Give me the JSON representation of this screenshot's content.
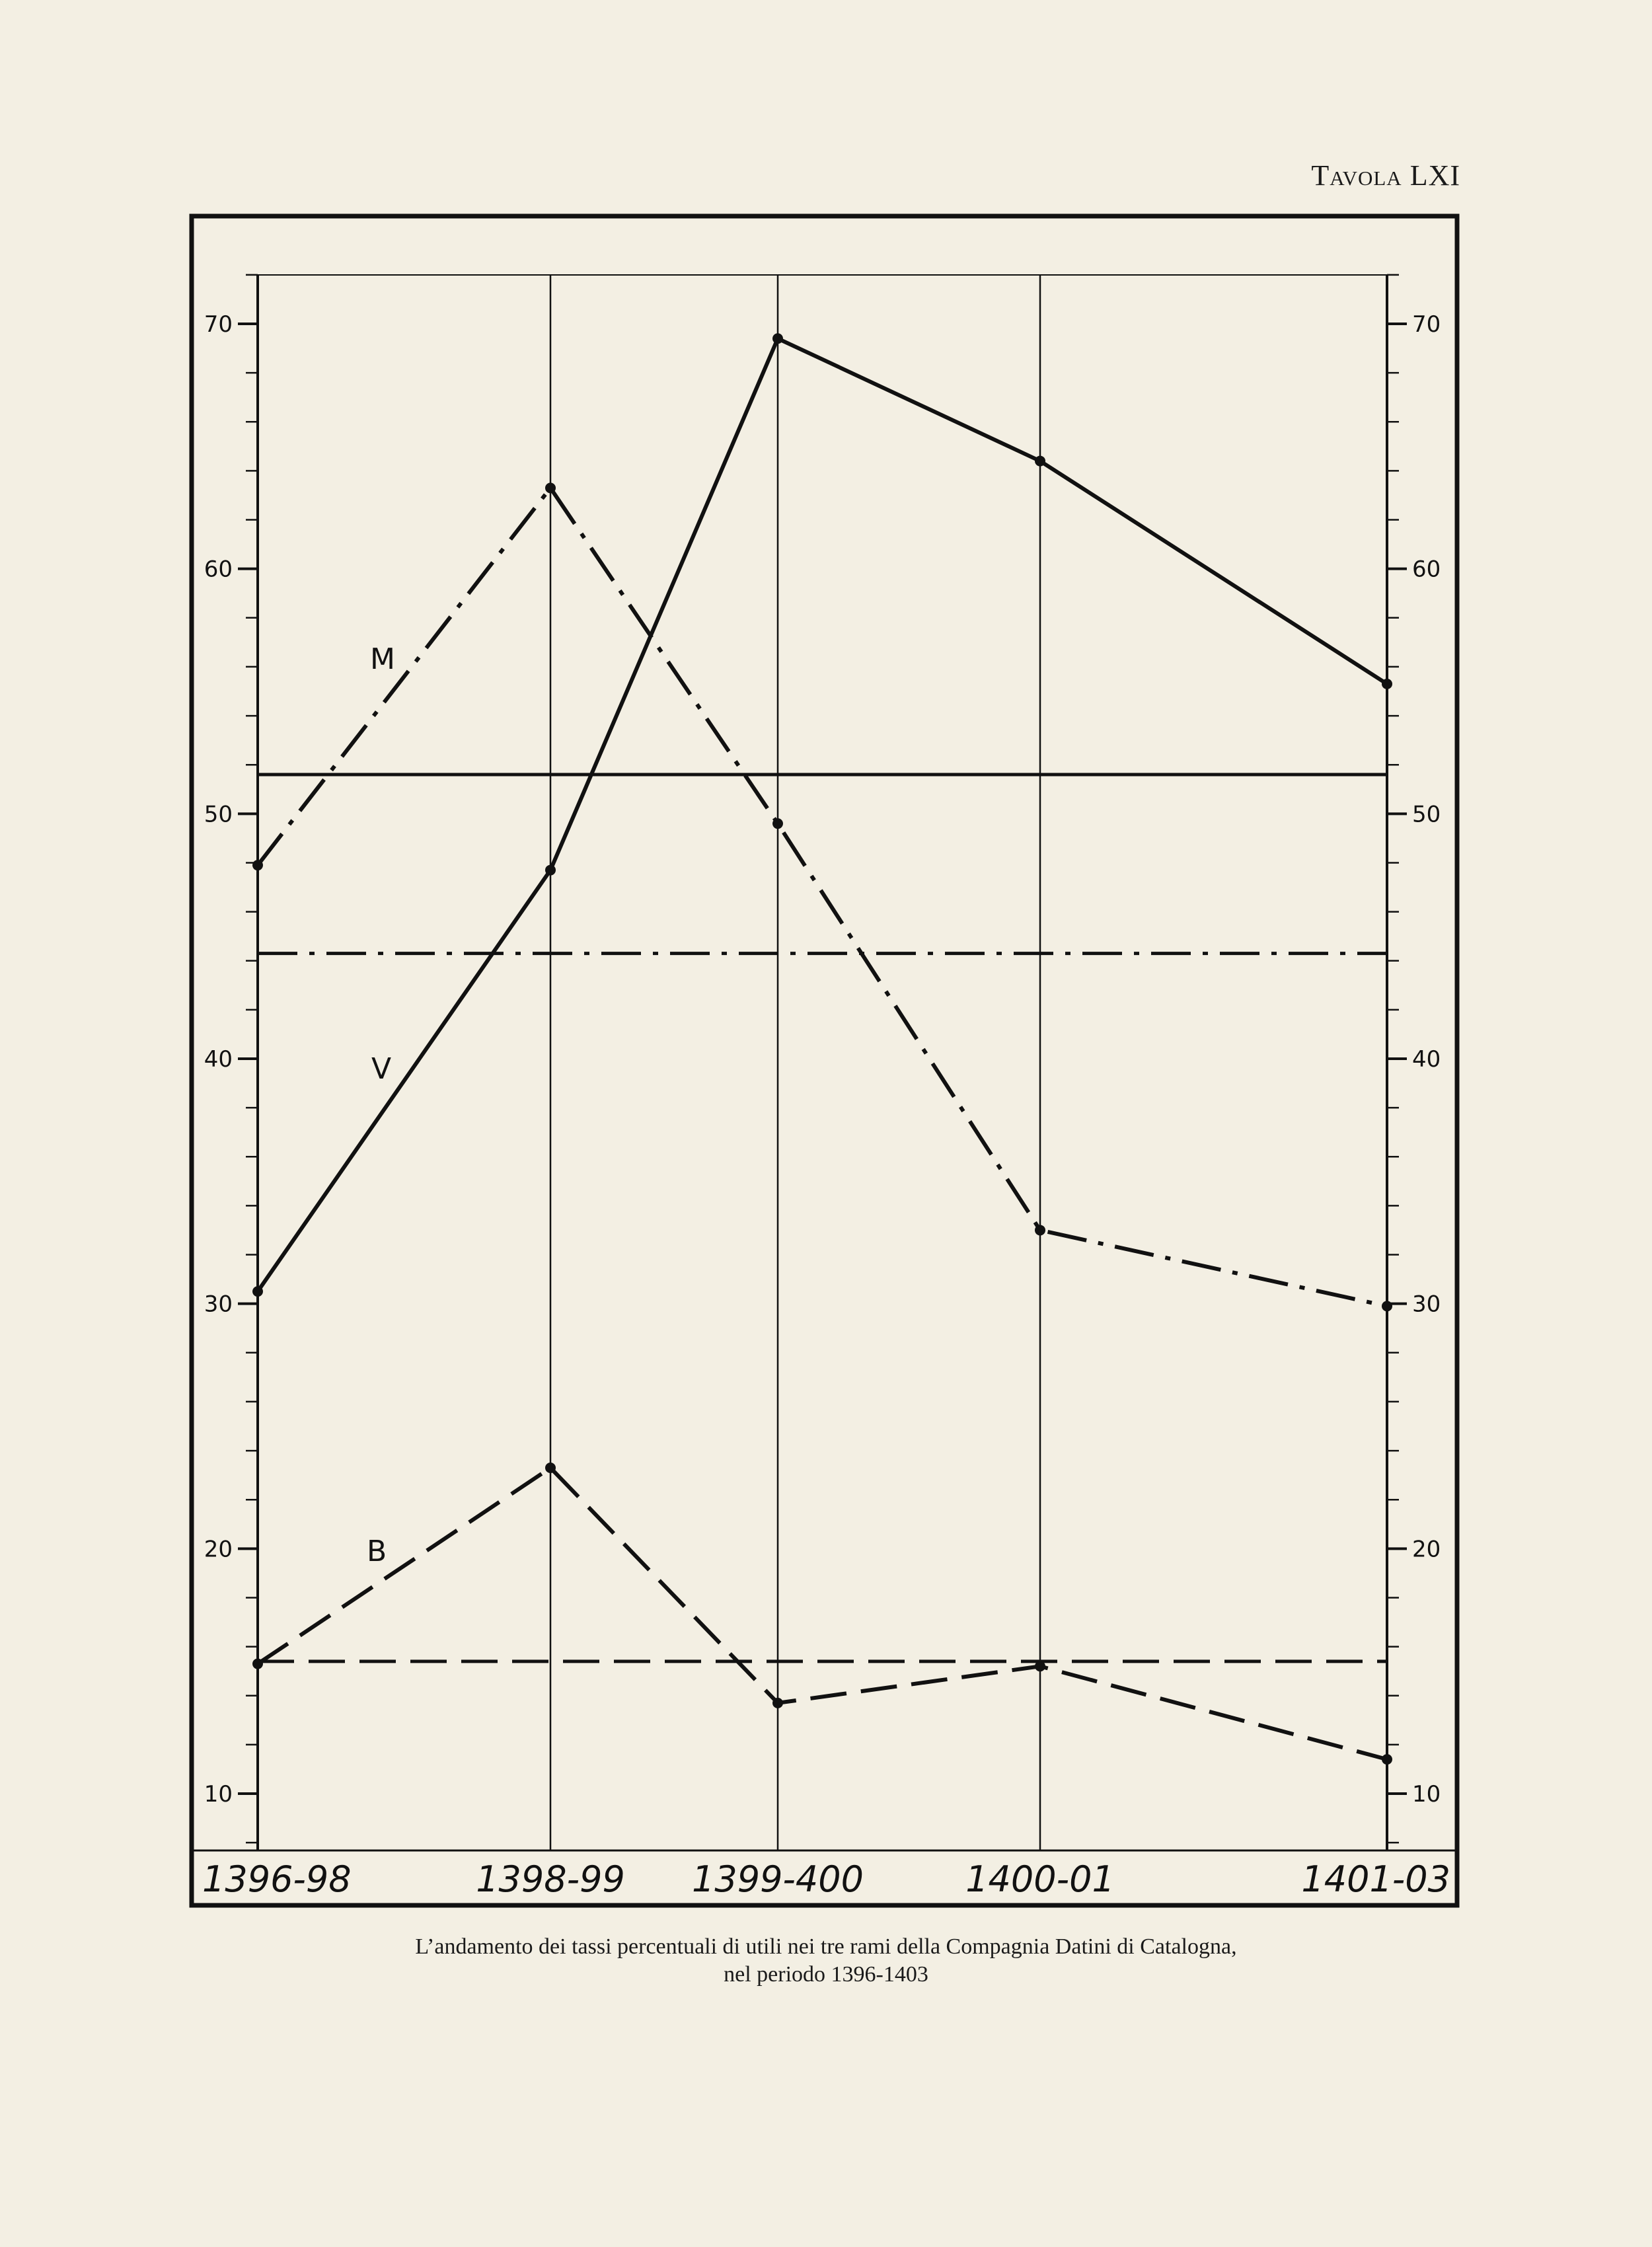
{
  "plate_title": "Tavola LXI",
  "caption": {
    "line1": "L’andamento dei tassi percentuali di utili nei tre rami della Compagnia Datini di Catalogna,",
    "line2": "nel periodo 1396-1403"
  },
  "chart_data": {
    "type": "line",
    "title": "L’andamento dei tassi percentuali di utili nei tre rami della Compagnia Datini di Catalogna, nel periodo 1396-1403",
    "xlabel": "",
    "ylabel": "",
    "categories": [
      "1396-98",
      "1398-99",
      "1399-400",
      "1400-01",
      "1401-03"
    ],
    "ylim": [
      8,
      72
    ],
    "yticks": [
      10,
      20,
      30,
      40,
      50,
      60,
      70
    ],
    "minor_tick_step": 2,
    "grid": "vertical lines at categories",
    "series": [
      {
        "name": "V",
        "style": "solid",
        "values": [
          30.5,
          47.7,
          69.4,
          64.4,
          55.3
        ],
        "average": 51.6
      },
      {
        "name": "M",
        "style": "dash-dot",
        "values": [
          47.9,
          63.3,
          49.6,
          33.0,
          29.9
        ],
        "average": 44.3
      },
      {
        "name": "B",
        "style": "dashed",
        "values": [
          15.3,
          23.3,
          13.7,
          15.2,
          11.4
        ],
        "average": 15.4
      }
    ]
  }
}
